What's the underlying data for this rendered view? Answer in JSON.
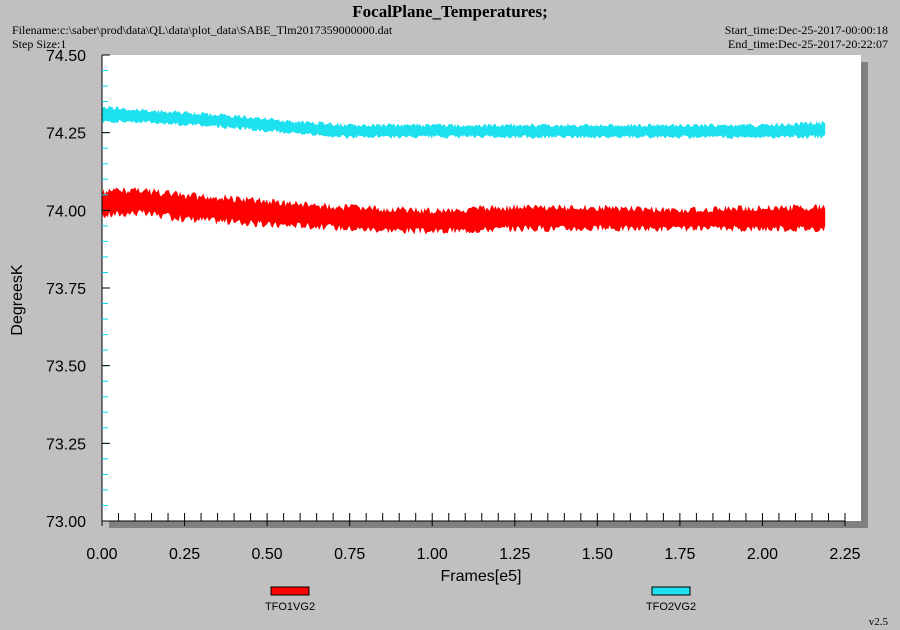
{
  "header": {
    "title": "FocalPlane_Temperatures;",
    "filename": "Filename:c:\\saber\\prod\\data\\QL\\data\\plot_data\\SABE_Tlm2017359000000.dat",
    "step_size": "Step Size:1",
    "start_time": "Start_time:Dec-25-2017-00:00:18",
    "end_time": "End_time:Dec-25-2017-20:22:07"
  },
  "version": "v2.5",
  "colors": {
    "background": "#c0c0c0",
    "plot_bg": "#ffffff",
    "shadow": "#808080",
    "tick_cyan": "#00d8f0"
  },
  "chart_data": {
    "type": "line",
    "title": "",
    "xlabel": "Frames[e5]",
    "ylabel": "DegreesK",
    "xlim": [
      0.0,
      2.25
    ],
    "ylim": [
      73.0,
      74.5
    ],
    "xticks": [
      "0.00",
      "0.25",
      "0.50",
      "0.75",
      "1.00",
      "1.25",
      "1.50",
      "1.75",
      "2.00",
      "2.25"
    ],
    "yticks": [
      "73.00",
      "73.25",
      "73.50",
      "73.75",
      "74.00",
      "74.25",
      "74.50"
    ],
    "grid": false,
    "legend": "bottom",
    "series": [
      {
        "name": "TFO1VG2",
        "color": "#ff0000",
        "x": [
          0.0,
          0.1,
          0.25,
          0.4,
          0.5,
          0.6,
          0.75,
          1.0,
          1.25,
          1.5,
          1.75,
          2.0,
          2.19
        ],
        "y_min": [
          73.97,
          73.98,
          73.96,
          73.95,
          73.94,
          73.94,
          73.93,
          73.92,
          73.93,
          73.93,
          73.93,
          73.93,
          73.93
        ],
        "y_max": [
          74.07,
          74.08,
          74.06,
          74.05,
          74.04,
          74.03,
          74.02,
          74.01,
          74.02,
          74.02,
          74.01,
          74.02,
          74.02
        ]
      },
      {
        "name": "TFO2VG2",
        "color": "#1ee1f0",
        "x": [
          0.0,
          0.1,
          0.25,
          0.4,
          0.5,
          0.6,
          0.75,
          1.0,
          1.25,
          1.5,
          1.75,
          2.0,
          2.19
        ],
        "y_min": [
          74.28,
          74.28,
          74.27,
          74.26,
          74.25,
          74.24,
          74.23,
          74.23,
          74.23,
          74.23,
          74.23,
          74.23,
          74.23
        ],
        "y_max": [
          74.34,
          74.33,
          74.32,
          74.31,
          74.3,
          74.29,
          74.28,
          74.28,
          74.28,
          74.28,
          74.28,
          74.28,
          74.29
        ]
      }
    ]
  }
}
